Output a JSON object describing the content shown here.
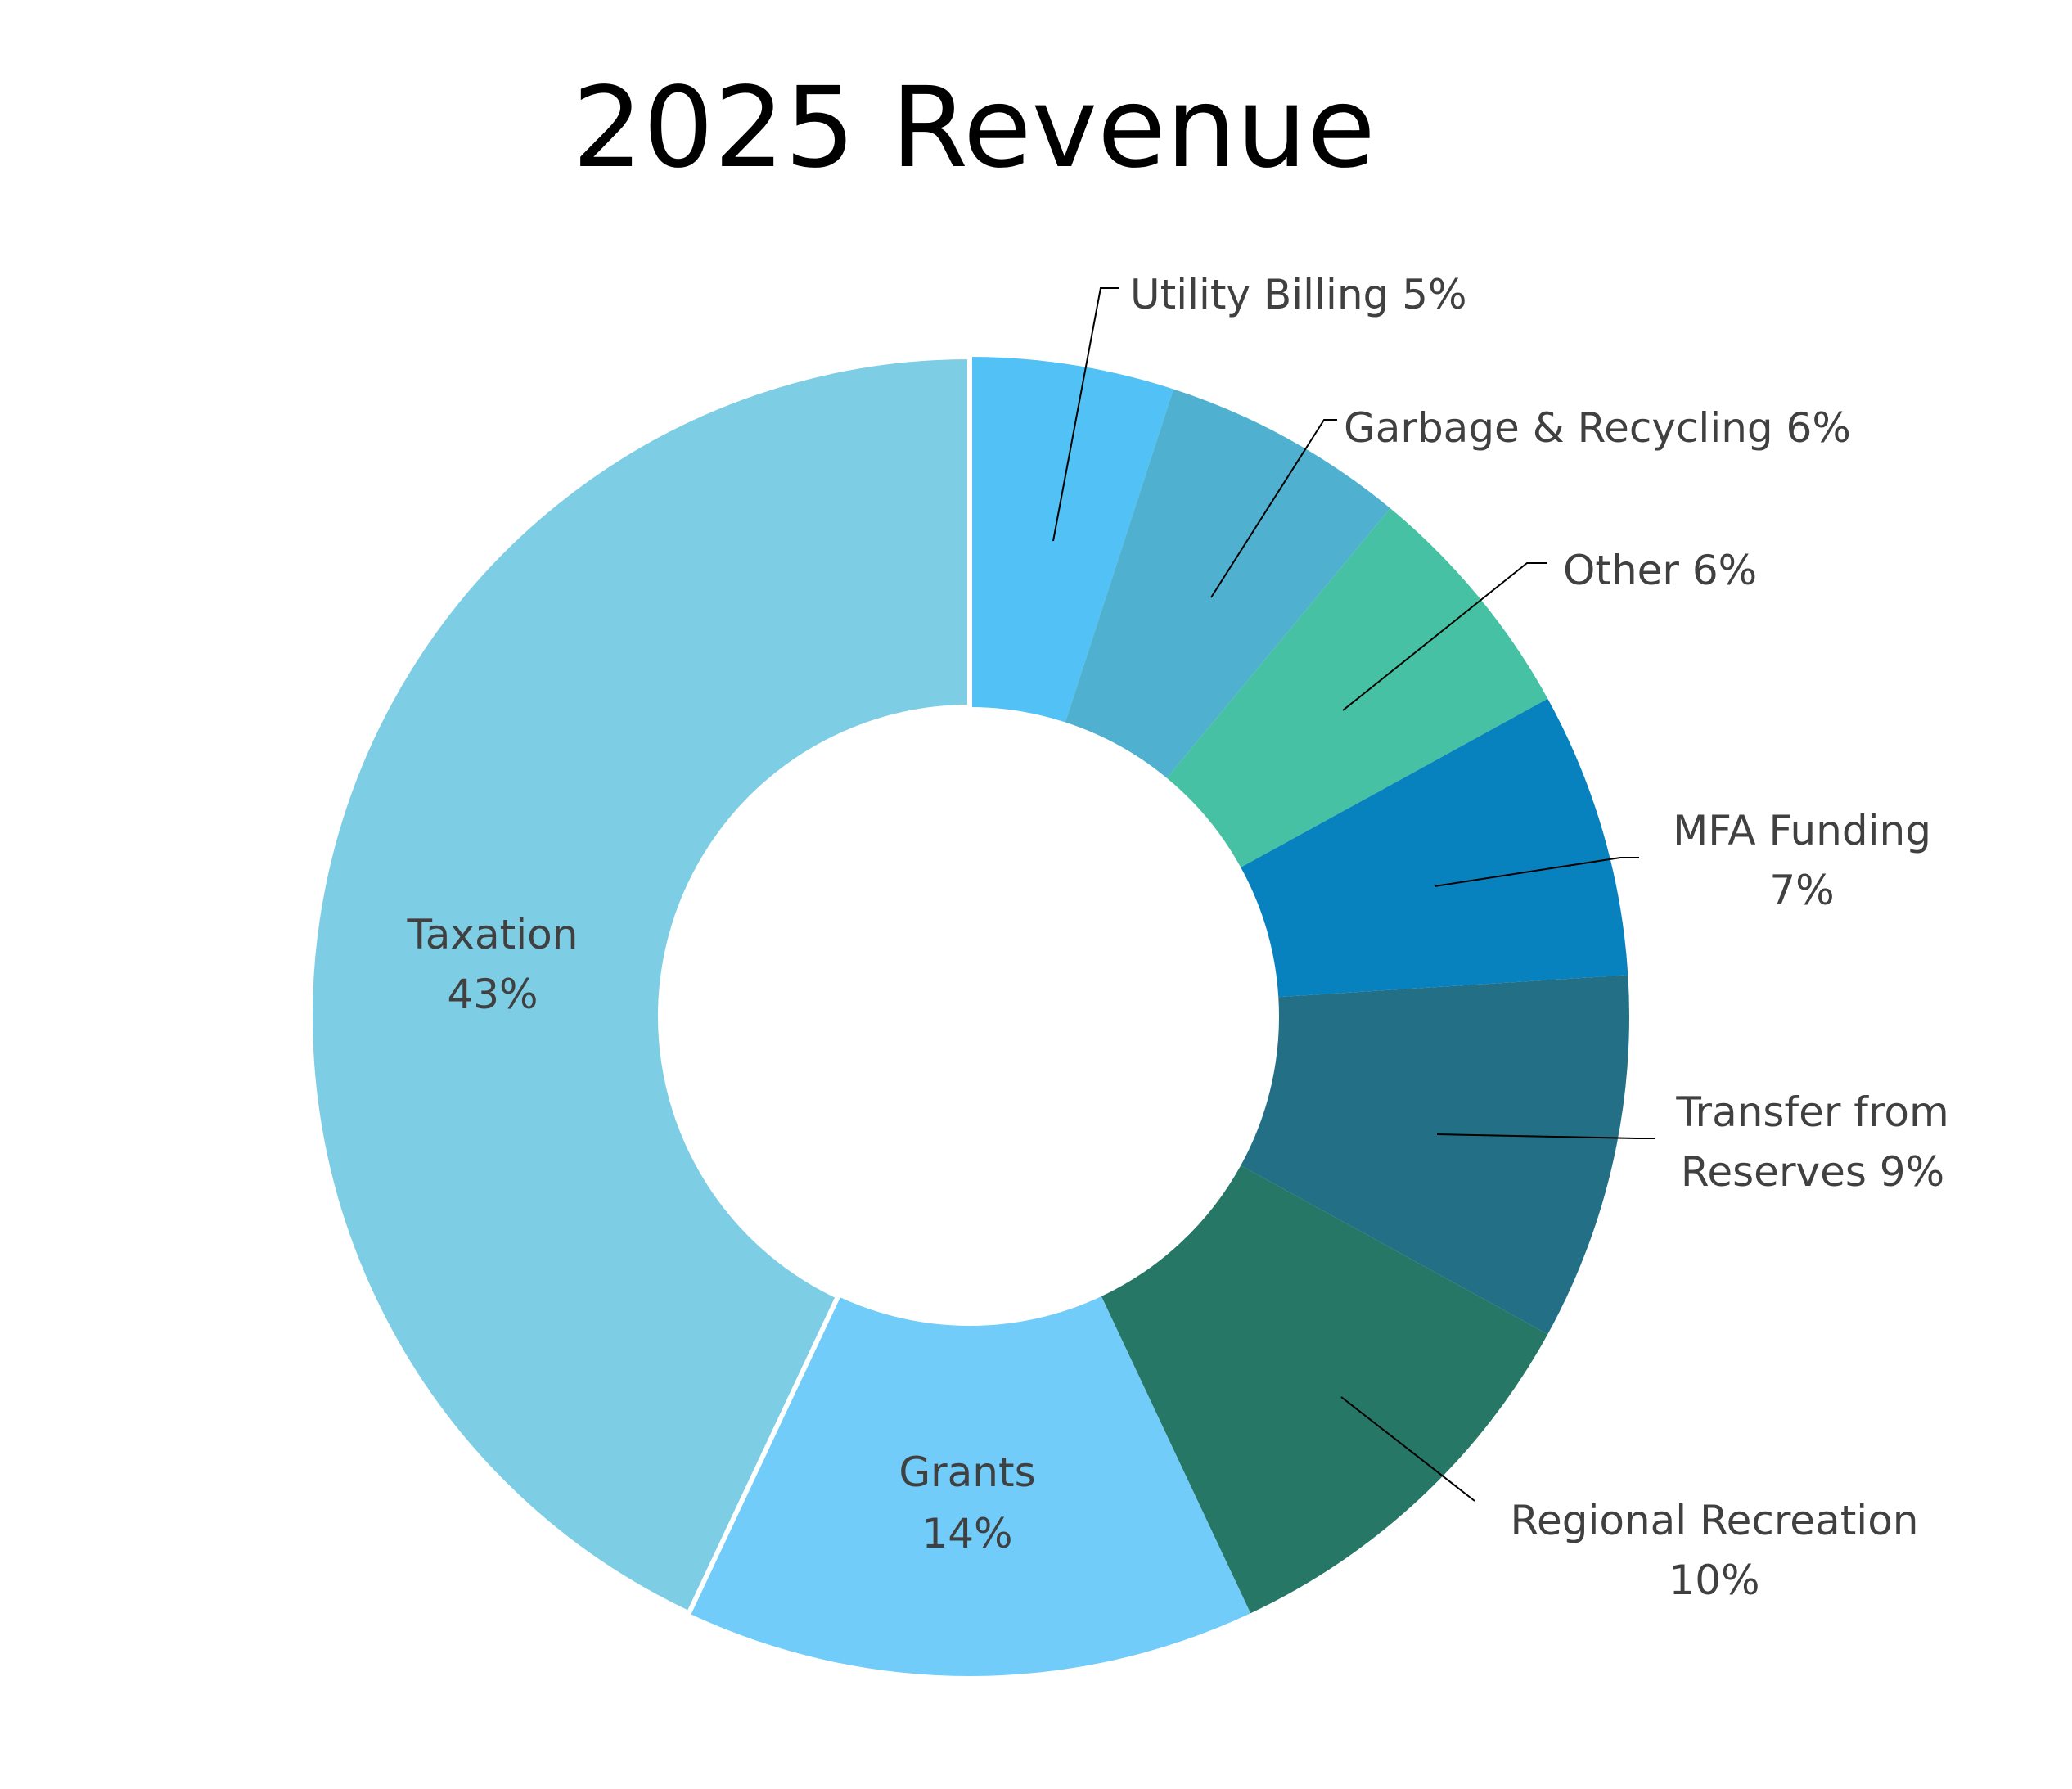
{
  "chart_data": {
    "type": "pie",
    "variant": "donut",
    "title": "2025 Revenue",
    "start": "top, clockwise",
    "slices": [
      {
        "name": "Utility Billing",
        "value": 5,
        "label": [
          "Utility Billing 5%"
        ],
        "color": "#52C1F5"
      },
      {
        "name": "Garbage & Recycling",
        "value": 6,
        "label": [
          "Garbage & Recycling 6%"
        ],
        "color": "#4FB1CF"
      },
      {
        "name": "Other",
        "value": 6,
        "label": [
          "Other 6%"
        ],
        "color": "#47C1A3"
      },
      {
        "name": "MFA Funding",
        "value": 7,
        "label": [
          "MFA Funding",
          "7%"
        ],
        "color": "#0882BF"
      },
      {
        "name": "Transfer from Reserves",
        "value": 9,
        "label": [
          "Transfer from",
          "Reserves 9%"
        ],
        "color": "#237086"
      },
      {
        "name": "Regional Recreation",
        "value": 10,
        "label": [
          "Regional Recreation",
          "10%"
        ],
        "color": "#267766"
      },
      {
        "name": "Grants",
        "value": 14,
        "label": [
          "Grants",
          "14%"
        ],
        "color": "#72CCF9"
      },
      {
        "name": "Taxation",
        "value": 43,
        "label": [
          "Taxation",
          "43%"
        ],
        "color": "#7DCDE5"
      }
    ]
  }
}
